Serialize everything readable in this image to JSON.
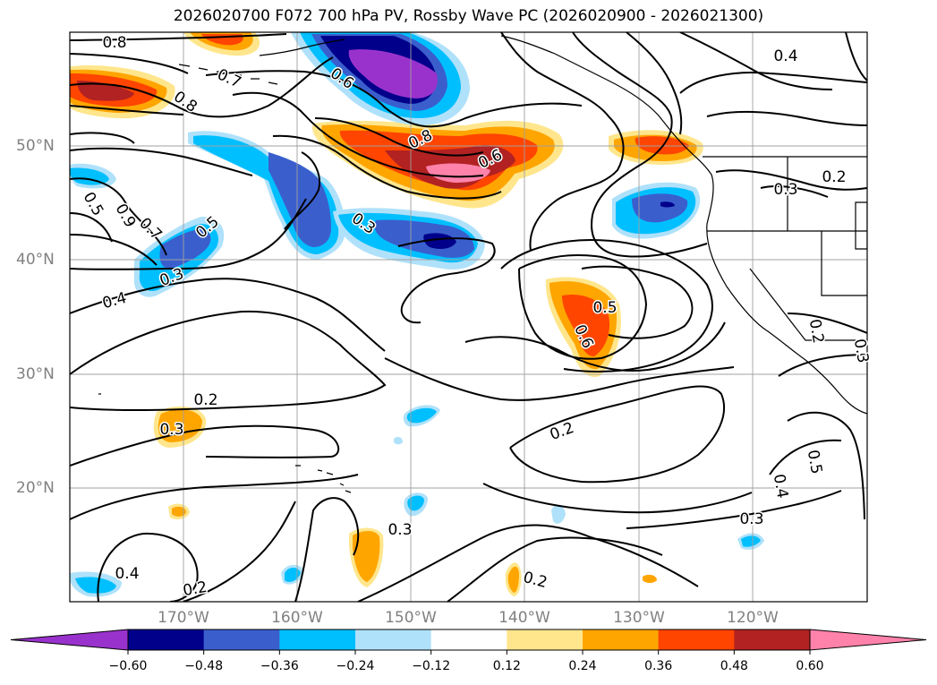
{
  "title": "2026020700 F072 700 hPa PV, Rossby Wave PC (2026020900 - 2026021300)",
  "latitude_labels": [
    "50°N",
    "40°N",
    "30°N",
    "20°N"
  ],
  "longitude_labels": [
    "170°W",
    "160°W",
    "150°W",
    "140°W",
    "130°W",
    "120°W"
  ],
  "contour_labels": [
    "0.8",
    "0.7",
    "0.8",
    "0.6",
    "0.8",
    "0.6",
    "0.4",
    "0.3",
    "0.5",
    "0.9",
    "0.7",
    "0.5",
    "0.3",
    "0.4",
    "0.3",
    "0.5",
    "0.6",
    "0.2",
    "0.3",
    "0.2",
    "0.5",
    "0.4",
    "0.3",
    "0.3",
    "0.2",
    "0.4",
    "0.2",
    "0.2",
    "0.3",
    "0.2"
  ],
  "colorbar": {
    "ticks": [
      "−0.60",
      "−0.48",
      "−0.36",
      "−0.24",
      "−0.12",
      "0.12",
      "0.24",
      "0.36",
      "0.48",
      "0.60"
    ],
    "colors": [
      "#9932cc",
      "#00008b",
      "#3a5fcd",
      "#00bfff",
      "#afe1fa",
      "#ffffff",
      "#ffe68c",
      "#ffa500",
      "#ff4500",
      "#b22222",
      "#ff82ab"
    ]
  },
  "colors": {
    "contour": "#000000",
    "coast": "#000000",
    "grid": "#a0a0a0",
    "axis_text": "#808080"
  }
}
